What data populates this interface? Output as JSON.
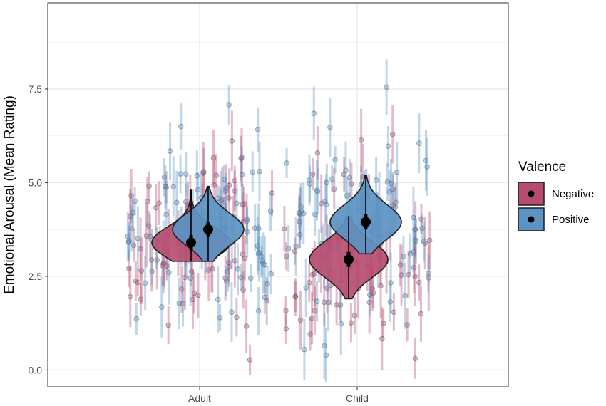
{
  "chart_data": {
    "type": "scatter",
    "subtype": "violin-with-jittered-points",
    "ylabel": "Emotional Arousal (Mean Rating)",
    "xlabel": "",
    "categories": [
      "Adult",
      "Child"
    ],
    "ylim": [
      -0.45,
      9.8
    ],
    "yticks": [
      0.0,
      2.5,
      5.0,
      7.5
    ],
    "ytick_labels": [
      "0.0",
      "2.5",
      "5.0",
      "7.5"
    ],
    "grid": true,
    "theme": "bw",
    "legend": {
      "title": "Valence",
      "position": "right",
      "entries": [
        "Negative",
        "Positive"
      ]
    },
    "colors": {
      "Negative": "#b64d70",
      "Positive": "#5b93c2",
      "summary": "#000000"
    },
    "series": [
      {
        "name": "Negative",
        "summaries": [
          {
            "category": "Adult",
            "mean": 3.4,
            "ci50": [
              3.2,
              3.6
            ],
            "ci95": [
              2.9,
              4.8
            ]
          },
          {
            "category": "Child",
            "mean": 2.95,
            "ci50": [
              2.75,
              3.15
            ],
            "ci95": [
              1.9,
              4.1
            ]
          }
        ]
      },
      {
        "name": "Positive",
        "summaries": [
          {
            "category": "Adult",
            "mean": 3.75,
            "ci50": [
              3.55,
              3.95
            ],
            "ci95": [
              2.9,
              4.9
            ]
          },
          {
            "category": "Child",
            "mean": 3.95,
            "ci50": [
              3.75,
              4.15
            ],
            "ci95": [
              3.1,
              5.2
            ]
          }
        ]
      }
    ]
  }
}
